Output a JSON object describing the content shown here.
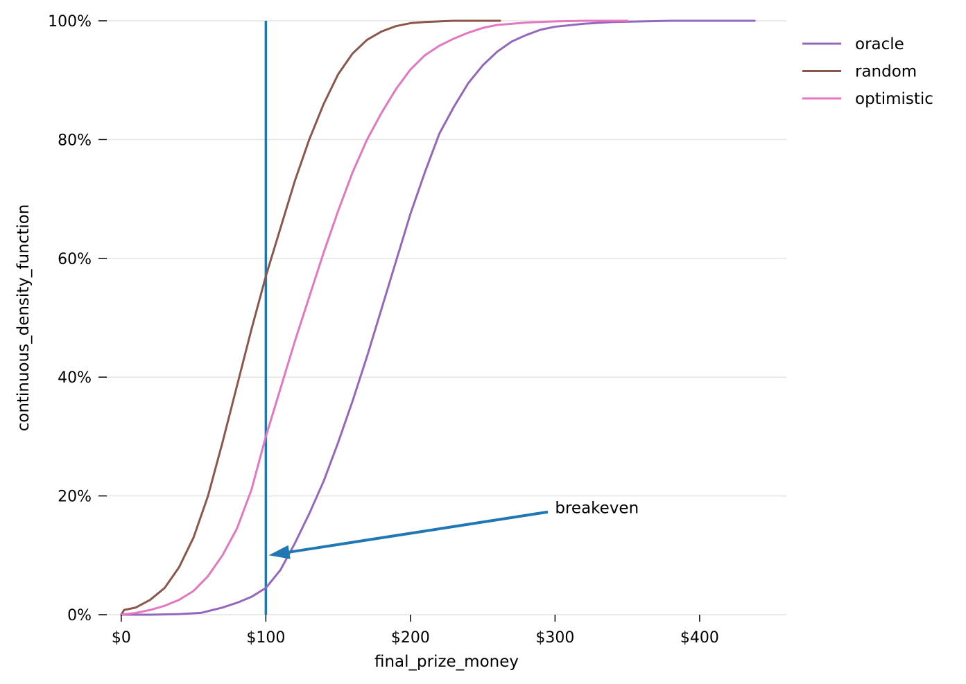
{
  "chart_data": {
    "type": "line",
    "title": "",
    "xlabel": "final_prize_money",
    "ylabel": "continuous_density_function",
    "xlim": [
      -10,
      460
    ],
    "ylim": [
      0,
      1
    ],
    "x_ticks": [
      0,
      100,
      200,
      300,
      400
    ],
    "x_tick_labels": [
      "$0",
      "$100",
      "$200",
      "$300",
      "$400"
    ],
    "y_ticks": [
      0,
      0.2,
      0.4,
      0.6,
      0.8,
      1.0
    ],
    "y_tick_labels": [
      "0%",
      "20%",
      "40%",
      "60%",
      "80%",
      "100%"
    ],
    "grid": "horizontal",
    "legend_position": "top-right",
    "series": [
      {
        "name": "oracle",
        "color": "#9467bd",
        "x": [
          0,
          20,
          40,
          55,
          60,
          70,
          80,
          90,
          100,
          110,
          120,
          130,
          140,
          150,
          160,
          170,
          180,
          190,
          200,
          210,
          220,
          230,
          240,
          250,
          260,
          270,
          280,
          290,
          300,
          320,
          340,
          360,
          380,
          400,
          420,
          438
        ],
        "y": [
          0,
          0.0,
          0.001,
          0.003,
          0.006,
          0.012,
          0.02,
          0.03,
          0.045,
          0.075,
          0.12,
          0.17,
          0.225,
          0.29,
          0.36,
          0.435,
          0.515,
          0.595,
          0.675,
          0.745,
          0.81,
          0.855,
          0.895,
          0.925,
          0.948,
          0.965,
          0.976,
          0.985,
          0.99,
          0.995,
          0.998,
          0.999,
          1.0,
          1.0,
          1.0,
          1.0
        ]
      },
      {
        "name": "random",
        "color": "#8c564b",
        "x": [
          0,
          2,
          10,
          20,
          30,
          40,
          50,
          60,
          70,
          80,
          90,
          100,
          110,
          120,
          130,
          140,
          150,
          160,
          170,
          180,
          190,
          200,
          210,
          220,
          230,
          240,
          250,
          262
        ],
        "y": [
          0,
          0.008,
          0.012,
          0.025,
          0.045,
          0.08,
          0.13,
          0.2,
          0.29,
          0.385,
          0.48,
          0.57,
          0.65,
          0.73,
          0.8,
          0.86,
          0.91,
          0.945,
          0.968,
          0.982,
          0.991,
          0.996,
          0.998,
          0.999,
          1.0,
          1.0,
          1.0,
          1.0
        ]
      },
      {
        "name": "optimistic",
        "color": "#e377c2",
        "x": [
          0,
          10,
          20,
          30,
          40,
          50,
          60,
          70,
          80,
          90,
          100,
          110,
          120,
          130,
          140,
          150,
          160,
          170,
          180,
          190,
          200,
          210,
          220,
          230,
          240,
          250,
          260,
          280,
          300,
          320,
          340,
          350
        ],
        "y": [
          0,
          0.003,
          0.008,
          0.015,
          0.025,
          0.04,
          0.065,
          0.1,
          0.145,
          0.21,
          0.3,
          0.38,
          0.46,
          0.535,
          0.61,
          0.68,
          0.745,
          0.8,
          0.845,
          0.885,
          0.918,
          0.942,
          0.958,
          0.97,
          0.98,
          0.988,
          0.993,
          0.997,
          0.999,
          1.0,
          1.0,
          1.0
        ]
      }
    ],
    "reference_line": {
      "x": 100,
      "color": "#1f77b4"
    },
    "annotation": {
      "text": "breakeven",
      "x": 300,
      "y": 0.18,
      "arrow_from_x": 295,
      "arrow_from_y": 0.173,
      "arrow_to_x": 102,
      "arrow_to_y": 0.1,
      "color": "#1f77b4"
    }
  }
}
